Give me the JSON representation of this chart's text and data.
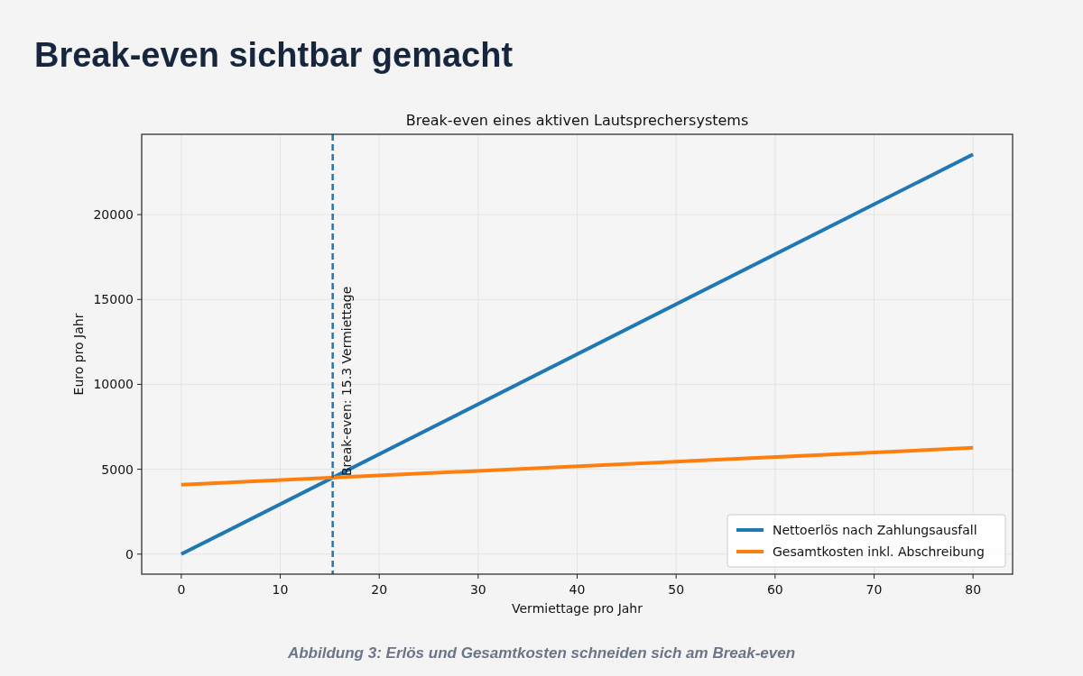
{
  "chart_data": {
    "type": "line",
    "title": "Break-even sichtbar gemacht",
    "subtitle": "Break-even eines aktiven Lautsprechersystems",
    "xlabel": "Vermiettage pro Jahr",
    "ylabel": "Euro pro Jahr",
    "x": [
      0,
      80
    ],
    "series": [
      {
        "name": "Nettoerlös nach Zahlungsausfall",
        "color": "#1f77b4",
        "values": [
          0,
          23550
        ]
      },
      {
        "name": "Gesamtkosten inkl. Abschreibung",
        "color": "#ff7f0e",
        "values": [
          4090,
          6260
        ]
      }
    ],
    "xlim": [
      -4,
      84
    ],
    "xticks": [
      0,
      10,
      20,
      30,
      40,
      50,
      60,
      70,
      80
    ],
    "ylim": [
      -1180,
      24730
    ],
    "yticks": [
      0,
      5000,
      10000,
      15000,
      20000
    ],
    "ref_lines": [
      {
        "axis": "x",
        "value": 15.3,
        "label": "Break-even: 15.3 Vermiettage",
        "color": "#1f77b4",
        "line_style": "dashed"
      }
    ],
    "annotations": [
      "Abbildung 3: Erlös und Gesamtkosten schneiden sich am Break-even"
    ],
    "grid": true,
    "legend": "bottom right",
    "marker": "none",
    "line_style": "solid"
  }
}
